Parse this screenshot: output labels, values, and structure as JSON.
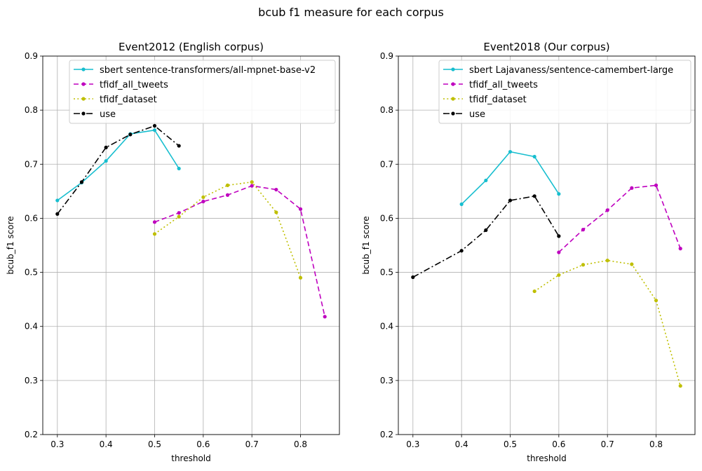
{
  "figure": {
    "suptitle": "bcub f1 measure for each corpus"
  },
  "style": {
    "colors": {
      "sbert": "#17becf",
      "tfidf_all_tweets": "#bf00bf",
      "tfidf_dataset": "#bfbf00",
      "use": "#000000",
      "grid": "#b0b0b0"
    }
  },
  "chart_data": [
    {
      "type": "line",
      "title": "Event2012 (English corpus)",
      "xlabel": "threshold",
      "ylabel": "bcub_f1 score",
      "xlim": [
        0.27,
        0.88
      ],
      "ylim": [
        0.2,
        0.9
      ],
      "xticks": [
        "0.3",
        "0.4",
        "0.5",
        "0.6",
        "0.7",
        "0.8"
      ],
      "yticks": [
        "0.2",
        "0.3",
        "0.4",
        "0.5",
        "0.6",
        "0.7",
        "0.8",
        "0.9"
      ],
      "grid": true,
      "legend_position": "top-right",
      "series": [
        {
          "name": "sbert sentence-transformers/all-mpnet-base-v2",
          "color_key": "sbert",
          "linestyle": "solid",
          "x": [
            0.3,
            0.35,
            0.4,
            0.45,
            0.5,
            0.55
          ],
          "y": [
            0.633,
            0.666,
            0.706,
            0.756,
            0.763,
            0.692
          ]
        },
        {
          "name": "tfidf_all_tweets",
          "color_key": "tfidf_all_tweets",
          "linestyle": "dashed",
          "x": [
            0.5,
            0.55,
            0.6,
            0.65,
            0.7,
            0.75,
            0.8,
            0.85
          ],
          "y": [
            0.593,
            0.61,
            0.631,
            0.643,
            0.66,
            0.653,
            0.617,
            0.418
          ]
        },
        {
          "name": "tfidf_dataset",
          "color_key": "tfidf_dataset",
          "linestyle": "dotted",
          "x": [
            0.5,
            0.55,
            0.6,
            0.65,
            0.7,
            0.75,
            0.8
          ],
          "y": [
            0.571,
            0.603,
            0.639,
            0.661,
            0.667,
            0.611,
            0.49
          ]
        },
        {
          "name": "use",
          "color_key": "use",
          "linestyle": "dashdot",
          "x": [
            0.3,
            0.35,
            0.4,
            0.45,
            0.5,
            0.55
          ],
          "y": [
            0.608,
            0.667,
            0.731,
            0.755,
            0.771,
            0.734
          ]
        }
      ]
    },
    {
      "type": "line",
      "title": "Event2018 (Our corpus)",
      "xlabel": "threshold",
      "ylabel": "bcub_f1 score",
      "xlim": [
        0.27,
        0.88
      ],
      "ylim": [
        0.2,
        0.9
      ],
      "xticks": [
        "0.3",
        "0.4",
        "0.5",
        "0.6",
        "0.7",
        "0.8"
      ],
      "yticks": [
        "0.2",
        "0.3",
        "0.4",
        "0.5",
        "0.6",
        "0.7",
        "0.8",
        "0.9"
      ],
      "grid": true,
      "legend_position": "top-right",
      "series": [
        {
          "name": "sbert Lajavaness/sentence-camembert-large",
          "color_key": "sbert",
          "linestyle": "solid",
          "x": [
            0.4,
            0.45,
            0.5,
            0.55,
            0.6
          ],
          "y": [
            0.626,
            0.67,
            0.723,
            0.714,
            0.645
          ]
        },
        {
          "name": "tfidf_all_tweets",
          "color_key": "tfidf_all_tweets",
          "linestyle": "dashed",
          "x": [
            0.6,
            0.65,
            0.7,
            0.75,
            0.8,
            0.85
          ],
          "y": [
            0.537,
            0.579,
            0.615,
            0.656,
            0.661,
            0.544
          ]
        },
        {
          "name": "tfidf_dataset",
          "color_key": "tfidf_dataset",
          "linestyle": "dotted",
          "x": [
            0.55,
            0.6,
            0.65,
            0.7,
            0.75,
            0.8,
            0.85
          ],
          "y": [
            0.465,
            0.495,
            0.514,
            0.522,
            0.515,
            0.448,
            0.29
          ]
        },
        {
          "name": "use",
          "color_key": "use",
          "linestyle": "dashdot",
          "x": [
            0.3,
            0.4,
            0.45,
            0.5,
            0.55,
            0.6
          ],
          "y": [
            0.491,
            0.54,
            0.578,
            0.633,
            0.641,
            0.567
          ]
        }
      ]
    }
  ]
}
